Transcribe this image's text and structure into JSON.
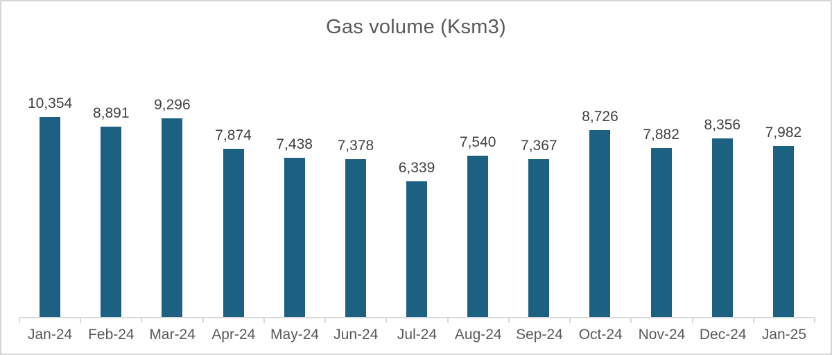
{
  "chart_data": {
    "type": "bar",
    "title": "Gas volume (Ksm3)",
    "categories": [
      "Jan-24",
      "Feb-24",
      "Mar-24",
      "Apr-24",
      "May-24",
      "Jun-24",
      "Jul-24",
      "Aug-24",
      "Sep-24",
      "Oct-24",
      "Nov-24",
      "Dec-24",
      "Jan-25"
    ],
    "values": [
      10354,
      8891,
      9296,
      7874,
      7438,
      7378,
      6339,
      7540,
      7367,
      8726,
      7882,
      8356,
      7982
    ],
    "data_labels": [
      "10,354",
      "8,891",
      "9,296",
      "7,874",
      "7,438",
      "7,378",
      "6,339",
      "7,540",
      "7,367",
      "8,726",
      "7,882",
      "8,356",
      "7,982"
    ],
    "xlabel": "",
    "ylabel": "",
    "ylim": [
      0,
      10354
    ],
    "grid": false,
    "legend": false,
    "bar_color": "#1d6182"
  },
  "colors": {
    "title": "#595959",
    "data_label": "#404040",
    "axis_label": "#595959",
    "axis_line": "#d9d9d9",
    "frame_border": "#d5d5d5",
    "background": "#ffffff"
  }
}
